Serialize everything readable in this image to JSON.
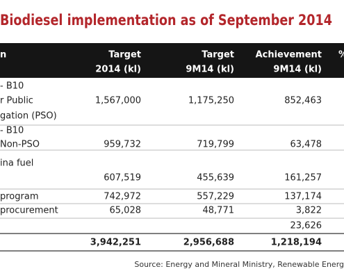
{
  "title": "Biodiesel implementation as of September 2014",
  "table": {
    "header": [
      [
        "n"
      ],
      [
        "Target",
        "2014 (kl)"
      ],
      [
        "Target",
        "9M14 (kl)"
      ],
      [
        "Achievement",
        "9M14 (kl)"
      ],
      [
        "%"
      ]
    ],
    "rows": [
      {
        "label": [
          "- B10",
          "r Public",
          "gation (PSO)"
        ],
        "cells": [
          "1,567,000",
          "1,175,250",
          "852,463"
        ]
      },
      {
        "label": [
          "- B10",
          "Non-PSO"
        ],
        "cells": [
          "959,732",
          "719,799",
          "63,478"
        ]
      },
      {
        "label": [
          "ina fuel"
        ],
        "cells": [
          "607,519",
          "455,639",
          "161,257"
        ]
      },
      {
        "label": [
          "program"
        ],
        "cells": [
          "742,972",
          "557,229",
          "137,174"
        ]
      },
      {
        "label": [
          "procurement"
        ],
        "cells": [
          "65,028",
          "48,771",
          "3,822"
        ]
      },
      {
        "cells": [
          null,
          null,
          "23,626"
        ]
      },
      {
        "cells": [
          "3,942,251",
          "2,956,688",
          "1,218,194"
        ]
      }
    ]
  },
  "source": "Source: Energy and Mineral Ministry, Renewable Energ"
}
